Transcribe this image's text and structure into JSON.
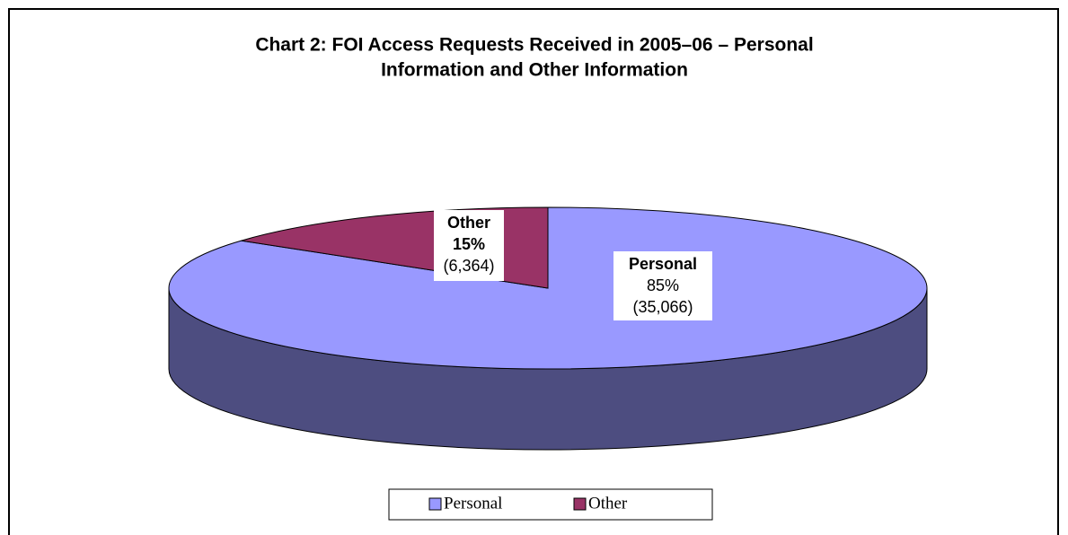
{
  "chart_data": {
    "type": "pie",
    "title": [
      "Chart 2: FOI Access Requests Received in 2005–06 – Personal",
      "Information and Other Information"
    ],
    "categories": [
      "Personal",
      "Other"
    ],
    "values": [
      85,
      15
    ],
    "value_labels": [
      "85%",
      "15%"
    ],
    "counts": [
      35066,
      6364
    ],
    "count_labels": [
      "(35,066)",
      "(6,364)"
    ],
    "colors": [
      "#9999ff",
      "#993366"
    ],
    "legend": "bottom"
  }
}
